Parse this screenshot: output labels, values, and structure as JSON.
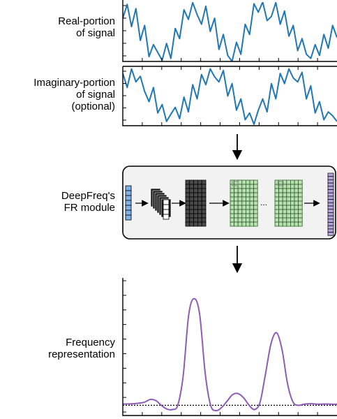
{
  "labels": {
    "real": [
      "Real-portion",
      "of signal"
    ],
    "imag": [
      "Imaginary-portion",
      "of signal",
      "(optional)"
    ],
    "module": [
      "DeepFreq's",
      "FR module"
    ],
    "freq": [
      "Frequency",
      "representation"
    ]
  },
  "colors": {
    "signal": "#1f77b4",
    "spectrum": "#8e5bb5",
    "input_block": "#7fb2e6",
    "conv_block": "#1a1a1a",
    "dark_grid": "#4a4a4a",
    "green_grid": "#b8e0b0",
    "output_block": "#b4a2d8",
    "module_bg": "#f2f2f2"
  },
  "module": {
    "ellipsis": "..."
  },
  "chart_data": [
    {
      "type": "line",
      "series": [
        {
          "values": [
            0.72,
            0.95,
            0.58,
            0.88,
            0.35,
            0.6,
            0.08,
            0.28,
            0.15,
            0.02,
            0.3,
            0.05,
            0.55,
            0.38,
            0.86,
            0.7,
            0.98,
            0.78,
            0.62,
            0.92,
            0.5,
            0.72,
            0.2,
            0.45,
            0.1,
            0.0,
            0.32,
            0.12,
            0.62,
            0.45,
            0.96,
            0.82,
            0.99,
            0.68,
            0.75,
            0.98,
            0.62,
            0.84,
            0.42,
            0.6,
            0.18,
            0.38,
            0.12,
            0.05,
            0.28,
            0.1,
            0.45,
            0.22,
            0.6,
            0.4
          ]
        }
      ],
      "ylim": [
        0,
        1
      ]
    },
    {
      "type": "line",
      "series": [
        {
          "values": [
            0.9,
            0.65,
            0.98,
            0.75,
            0.85,
            0.58,
            0.4,
            0.65,
            0.2,
            0.35,
            0.05,
            0.18,
            0.3,
            0.1,
            0.48,
            0.22,
            0.7,
            0.45,
            0.88,
            0.7,
            0.98,
            0.84,
            0.75,
            0.95,
            0.5,
            0.72,
            0.25,
            0.45,
            0.08,
            0.2,
            0.0,
            0.25,
            0.45,
            0.22,
            0.72,
            0.45,
            0.9,
            0.72,
            0.98,
            0.82,
            0.75,
            0.92,
            0.45,
            0.68,
            0.2,
            0.4,
            0.08,
            0.22,
            0.15,
            0.05
          ]
        }
      ],
      "ylim": [
        0,
        1
      ]
    },
    {
      "type": "line",
      "series": [
        {
          "values": [
            0.012,
            0.013,
            0.015,
            0.02,
            0.03,
            0.055,
            0.045,
            0.0,
            -0.035,
            -0.04,
            0.0,
            0.28,
            0.85,
            1.0,
            0.85,
            0.3,
            0.0,
            -0.05,
            -0.02,
            0.04,
            0.1,
            0.11,
            0.07,
            0.0,
            -0.04,
            0.03,
            0.3,
            0.58,
            0.68,
            0.52,
            0.2,
            0.03,
            0.0,
            0.01,
            0.015,
            0.012,
            0.01,
            0.012,
            0.01,
            0.01
          ]
        }
      ],
      "baseline": 0,
      "ylim": [
        -0.05,
        1.05
      ]
    }
  ]
}
